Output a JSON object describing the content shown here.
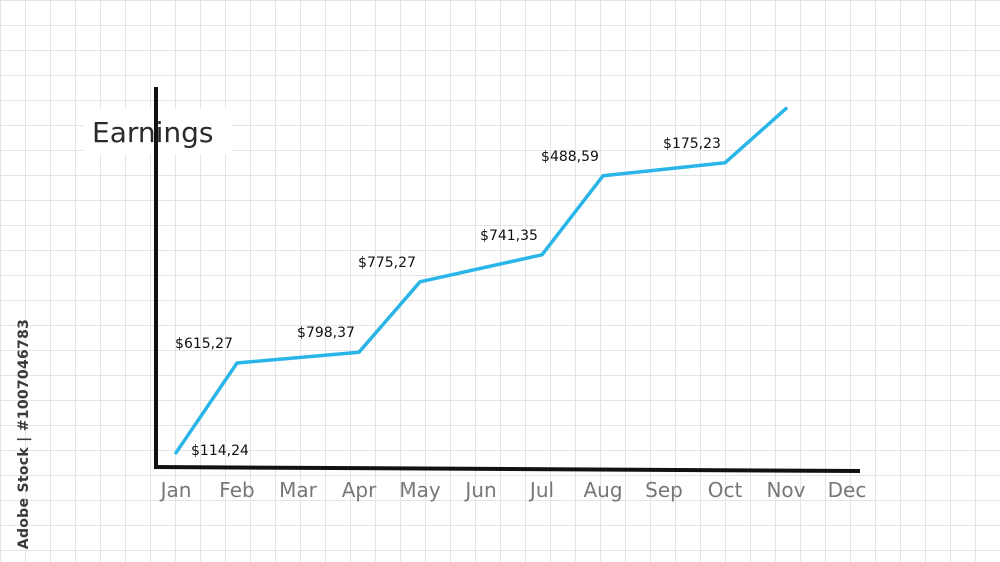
{
  "watermark": "Adobe Stock | #1007046783",
  "colors": {
    "line": "#29b5e8",
    "axis": "#111111",
    "tick": "#777777"
  },
  "chart_data": {
    "type": "line",
    "title": "Earnings",
    "xlabel": "",
    "ylabel": "",
    "grid": true,
    "categories": [
      "Jan",
      "Feb",
      "Mar",
      "Apr",
      "May",
      "Jun",
      "Jul",
      "Aug",
      "Sep",
      "Oct",
      "Nov",
      "Dec"
    ],
    "series": [
      {
        "values": [
          2,
          85,
          null,
          95,
          160,
          null,
          185,
          258,
          null,
          270,
          320,
          null
        ],
        "data_labels": [
          "$114,24",
          "$615,27",
          null,
          "$798,37",
          "$775,27",
          null,
          "$741,35",
          "$488,59",
          null,
          "$175,23",
          null,
          null
        ]
      }
    ],
    "ylim": [
      0,
      340
    ]
  }
}
